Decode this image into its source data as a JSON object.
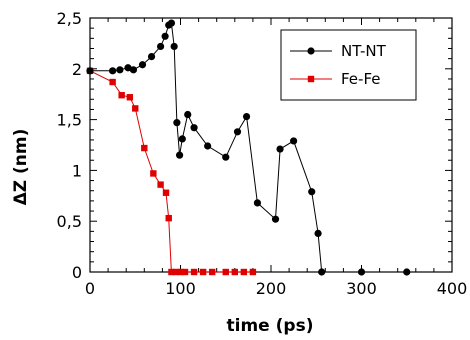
{
  "chart_data": {
    "type": "line",
    "xlabel": "time (ps)",
    "ylabel": "ΔZ (nm)",
    "xlim": [
      0,
      400
    ],
    "ylim": [
      0,
      2.5
    ],
    "x_ticks": [
      "0",
      "100",
      "200",
      "300",
      "400"
    ],
    "y_ticks": [
      "0",
      "0,5",
      "1",
      "1,5",
      "2",
      "2,5"
    ],
    "grid": false,
    "legend_position": "top-right",
    "series": [
      {
        "name": "NT-NT",
        "color": "#000000",
        "marker": "circle",
        "x": [
          0,
          25,
          33,
          42,
          48,
          58,
          68,
          78,
          83,
          87,
          90,
          93,
          96,
          99,
          102,
          108,
          115,
          130,
          150,
          163,
          173,
          185,
          205,
          210,
          225,
          245,
          252,
          256,
          300,
          350
        ],
        "y": [
          1.98,
          1.98,
          1.99,
          2.01,
          1.99,
          2.04,
          2.12,
          2.22,
          2.32,
          2.43,
          2.45,
          2.22,
          1.47,
          1.15,
          1.31,
          1.55,
          1.42,
          1.24,
          1.13,
          1.38,
          1.53,
          0.68,
          0.52,
          1.21,
          1.29,
          0.79,
          0.38,
          0.0,
          0.0,
          0.0
        ]
      },
      {
        "name": "Fe-Fe",
        "color": "#e00000",
        "marker": "square",
        "x": [
          0,
          25,
          35,
          44,
          50,
          60,
          70,
          78,
          84,
          87,
          90,
          95,
          100,
          105,
          115,
          125,
          135,
          150,
          160,
          170,
          180
        ],
        "y": [
          1.98,
          1.87,
          1.74,
          1.72,
          1.61,
          1.22,
          0.97,
          0.86,
          0.78,
          0.53,
          0.0,
          0.0,
          0.0,
          0.0,
          0.0,
          0.0,
          0.0,
          0.0,
          0.0,
          0.0,
          0.0
        ]
      }
    ]
  }
}
